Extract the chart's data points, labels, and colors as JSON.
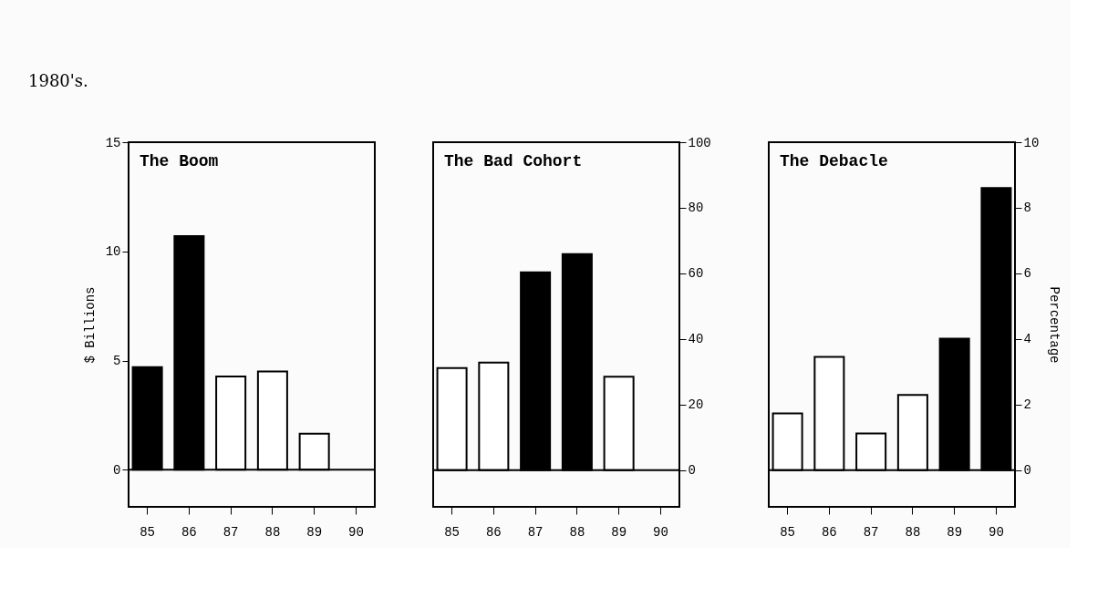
{
  "chart_data": [
    {
      "type": "bar",
      "title": "The Boom",
      "ylabel": "$ Billions",
      "annotations": [
        "1980's."
      ],
      "categories": [
        "85",
        "86",
        "87",
        "88",
        "89",
        "90"
      ],
      "values": [
        4.7,
        10.7,
        4.27,
        4.5,
        1.65,
        null
      ],
      "colors": [
        "#000000",
        "#000000",
        "#ffffff",
        "#ffffff",
        "#ffffff",
        "#ffffff"
      ],
      "ylim": [
        -1.7,
        15
      ],
      "yticks": [
        0,
        5,
        10,
        15
      ],
      "ref_lines": [
        {
          "axis": "y",
          "value": 0
        }
      ],
      "grid": false
    },
    {
      "type": "bar",
      "title": "The Bad Cohort",
      "categories": [
        "85",
        "86",
        "87",
        "88",
        "89",
        "90"
      ],
      "series": [
        {
          "axis": "y2",
          "values": [
            31.1,
            32.8,
            60.3,
            65.9,
            28.5,
            null
          ],
          "colors": [
            "#ffffff",
            "#ffffff",
            "#000000",
            "#000000",
            "#ffffff",
            "#ffffff"
          ]
        }
      ],
      "y2lim": [
        -11.2,
        100
      ],
      "y2ticks": [
        0,
        20,
        40,
        60,
        80,
        100
      ],
      "ref_lines": [
        {
          "axis": "y2",
          "value": 0
        }
      ],
      "grid": false
    },
    {
      "type": "bar",
      "title": "The Debacle",
      "y2label": "Percentage",
      "categories": [
        "85",
        "86",
        "87",
        "88",
        "89",
        "90"
      ],
      "series": [
        {
          "axis": "y2",
          "values": [
            1.73,
            3.45,
            1.12,
            2.29,
            4.01,
            8.6
          ],
          "colors": [
            "#ffffff",
            "#ffffff",
            "#ffffff",
            "#ffffff",
            "#000000",
            "#000000"
          ]
        }
      ],
      "y2lim": [
        -1.12,
        10
      ],
      "y2ticks": [
        0,
        2,
        4,
        6,
        8,
        10
      ],
      "ref_lines": [
        {
          "axis": "y2",
          "value": 0
        }
      ],
      "grid": false
    }
  ]
}
